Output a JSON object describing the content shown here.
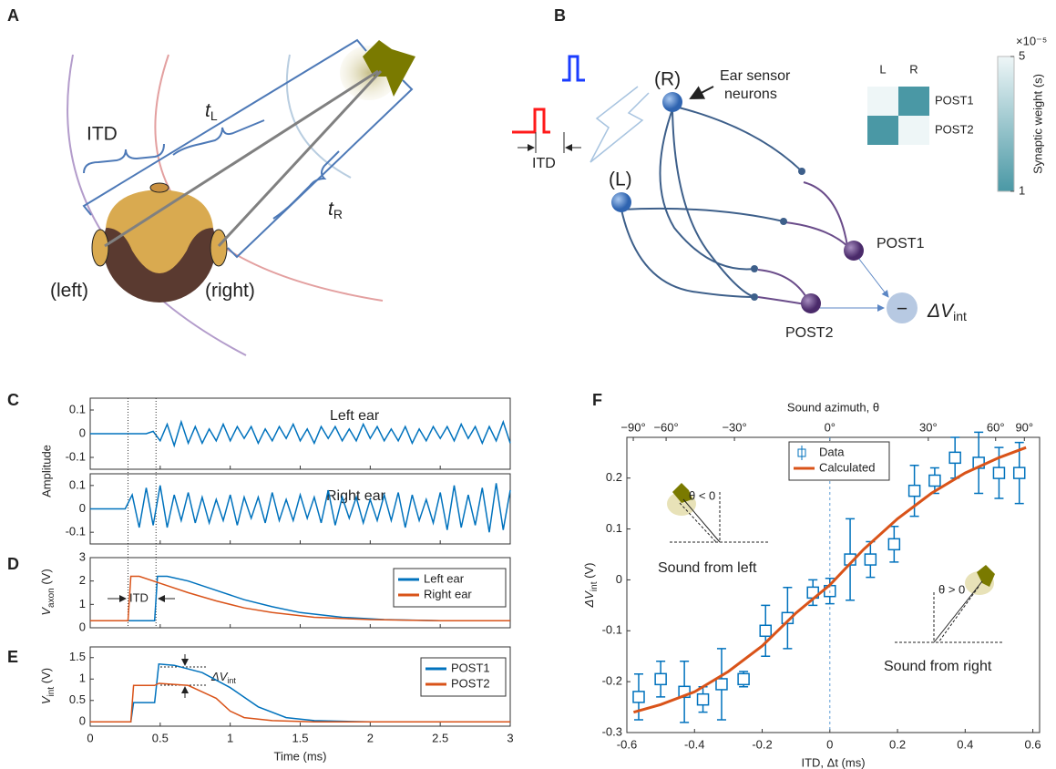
{
  "panels": {
    "A": "A",
    "B": "B",
    "C": "C",
    "D": "D",
    "E": "E",
    "F": "F"
  },
  "diagrams": {
    "A": {
      "itd": "ITD",
      "t_left": {
        "text": "t",
        "sub": "L"
      },
      "t_right": {
        "text": "t",
        "sub": "R"
      },
      "left": "(left)",
      "right": "(right)"
    },
    "B": {
      "right_neuron": "(R)",
      "left_neuron": "(L)",
      "sensor_label": [
        "Ear sensor",
        "neurons"
      ],
      "itd": "ITD",
      "post1": "POST1",
      "post2": "POST2",
      "output": {
        "text": "ΔV",
        "sub": "int"
      },
      "minus": "−"
    }
  },
  "chart_data": [
    {
      "type": "line",
      "annotation": "Left ear",
      "ylabel": "Amplitude",
      "xlim": [
        0,
        3
      ],
      "ylim": [
        -0.15,
        0.15
      ],
      "yticks": [
        -0.1,
        0,
        0.1
      ],
      "onsets": [
        0.27,
        0.47
      ],
      "x": [
        0,
        0.05,
        0.1,
        0.15,
        0.2,
        0.25,
        0.3,
        0.35,
        0.4,
        0.45,
        0.5,
        0.55,
        0.6,
        0.65,
        0.7,
        0.75,
        0.8,
        0.85,
        0.9,
        0.95,
        1,
        1.05,
        1.1,
        1.15,
        1.2,
        1.25,
        1.3,
        1.35,
        1.4,
        1.45,
        1.5,
        1.55,
        1.6,
        1.65,
        1.7,
        1.75,
        1.8,
        1.85,
        1.9,
        1.95,
        2,
        2.05,
        2.1,
        2.15,
        2.2,
        2.25,
        2.3,
        2.35,
        2.4,
        2.45,
        2.5,
        2.55,
        2.6,
        2.65,
        2.7,
        2.75,
        2.8,
        2.85,
        2.9,
        2.95,
        3
      ],
      "series": [
        {
          "color": "#0072bd",
          "values": [
            0,
            0,
            0,
            0,
            0,
            0,
            0,
            0,
            0,
            0.01,
            -0.03,
            0.04,
            -0.05,
            0.05,
            -0.04,
            0.03,
            -0.04,
            0.02,
            -0.03,
            0.04,
            -0.03,
            0.03,
            -0.02,
            0.03,
            -0.04,
            0.02,
            -0.03,
            0.03,
            -0.02,
            0.04,
            -0.03,
            0.02,
            -0.04,
            0.03,
            -0.02,
            0.03,
            -0.03,
            0.02,
            -0.03,
            0.04,
            -0.02,
            0.03,
            -0.03,
            0.02,
            -0.03,
            0.03,
            -0.04,
            0.02,
            -0.03,
            0.03,
            -0.02,
            0.03,
            -0.03,
            0.04,
            -0.02,
            0.03,
            -0.04,
            0.03,
            -0.03,
            0.05,
            -0.04
          ]
        }
      ]
    },
    {
      "type": "line",
      "annotation": "Right ear",
      "xlim": [
        0,
        3
      ],
      "ylim": [
        -0.15,
        0.15
      ],
      "yticks": [
        -0.1,
        0,
        0.1
      ],
      "x": [
        0,
        0.05,
        0.1,
        0.15,
        0.2,
        0.25,
        0.3,
        0.35,
        0.4,
        0.45,
        0.5,
        0.55,
        0.6,
        0.65,
        0.7,
        0.75,
        0.8,
        0.85,
        0.9,
        0.95,
        1,
        1.05,
        1.1,
        1.15,
        1.2,
        1.25,
        1.3,
        1.35,
        1.4,
        1.45,
        1.5,
        1.55,
        1.6,
        1.65,
        1.7,
        1.75,
        1.8,
        1.85,
        1.9,
        1.95,
        2,
        2.05,
        2.1,
        2.15,
        2.2,
        2.25,
        2.3,
        2.35,
        2.4,
        2.45,
        2.5,
        2.55,
        2.6,
        2.65,
        2.7,
        2.75,
        2.8,
        2.85,
        2.9,
        2.95,
        3
      ],
      "series": [
        {
          "color": "#0072bd",
          "values": [
            0,
            0,
            0,
            0,
            0,
            0,
            0.06,
            -0.08,
            0.09,
            -0.07,
            0.1,
            -0.08,
            0.06,
            -0.05,
            0.07,
            -0.06,
            0.05,
            -0.06,
            0.04,
            -0.05,
            0.06,
            -0.07,
            0.05,
            -0.04,
            0.05,
            -0.06,
            0.07,
            -0.05,
            0.04,
            -0.05,
            0.06,
            -0.04,
            0.05,
            -0.06,
            0.08,
            -0.07,
            0.05,
            -0.04,
            0.05,
            -0.06,
            0.04,
            -0.05,
            0.06,
            -0.05,
            0.07,
            -0.08,
            0.06,
            -0.05,
            0.04,
            -0.06,
            0.07,
            -0.09,
            0.1,
            -0.08,
            0.06,
            -0.07,
            0.09,
            -0.1,
            0.11,
            -0.09,
            0.08
          ]
        }
      ]
    },
    {
      "type": "line",
      "annotation": "ITD",
      "ylabel": {
        "text": "V",
        "sub": "axon",
        "suffix": " (V)"
      },
      "xlim": [
        0,
        3
      ],
      "ylim": [
        0,
        3
      ],
      "yticks": [
        0,
        1,
        2,
        3
      ],
      "series": [
        {
          "name": "Left ear",
          "color": "#0072bd",
          "x": [
            0,
            0.46,
            0.48,
            0.55,
            0.7,
            0.9,
            1.1,
            1.3,
            1.5,
            1.8,
            2.1,
            2.5,
            3
          ],
          "values": [
            0.3,
            0.3,
            2.2,
            2.2,
            2,
            1.6,
            1.2,
            0.9,
            0.65,
            0.45,
            0.35,
            0.3,
            0.3
          ]
        },
        {
          "name": "Right ear",
          "color": "#d95319",
          "x": [
            0,
            0.27,
            0.29,
            0.35,
            0.5,
            0.7,
            0.9,
            1.1,
            1.3,
            1.6,
            2,
            2.5,
            3
          ],
          "values": [
            0.3,
            0.3,
            2.2,
            2.2,
            1.9,
            1.5,
            1.15,
            0.85,
            0.65,
            0.45,
            0.35,
            0.3,
            0.3
          ]
        }
      ]
    },
    {
      "type": "line",
      "annotation": {
        "text": "ΔV",
        "sub": "int"
      },
      "ylabel": {
        "text": "V",
        "sub": "int",
        "suffix": " (V)"
      },
      "xlabel": "Time (ms)",
      "xlim": [
        0,
        3
      ],
      "ylim": [
        -0.1,
        1.75
      ],
      "yticks": [
        0,
        0.5,
        1,
        1.5
      ],
      "xticks": [
        0,
        0.5,
        1,
        1.5,
        2,
        2.5,
        3
      ],
      "series": [
        {
          "name": "POST1",
          "color": "#0072bd",
          "x": [
            0,
            0.29,
            0.31,
            0.46,
            0.49,
            0.6,
            0.8,
            1,
            1.2,
            1.4,
            1.6,
            2,
            3
          ],
          "values": [
            0,
            0,
            0.45,
            0.45,
            1.35,
            1.32,
            1.15,
            0.8,
            0.35,
            0.1,
            0.03,
            0,
            0
          ]
        },
        {
          "name": "POST2",
          "color": "#d95319",
          "x": [
            0,
            0.29,
            0.31,
            0.46,
            0.49,
            0.7,
            0.9,
            1,
            1.1,
            1.3,
            1.6,
            2,
            3
          ],
          "values": [
            0,
            0,
            0.85,
            0.85,
            0.9,
            0.85,
            0.55,
            0.25,
            0.1,
            0.03,
            0,
            0,
            0
          ]
        }
      ]
    },
    {
      "type": "scatter",
      "xlabel": "ITD, Δt (ms)",
      "ylabel": {
        "text": "ΔV",
        "sub": "int",
        "suffix": " (V)"
      },
      "x2label": "Sound azimuth, θ",
      "xlim": [
        -0.6,
        0.62
      ],
      "ylim": [
        -0.3,
        0.28
      ],
      "xticks": [
        -0.6,
        -0.4,
        -0.2,
        0,
        0.2,
        0.4,
        0.6
      ],
      "yticks": [
        -0.3,
        -0.2,
        -0.1,
        0,
        0.1,
        0.2
      ],
      "vline": 0,
      "x2ticks": [
        {
          "value": -0.581,
          "label": "−90°"
        },
        {
          "value": -0.484,
          "label": "−60°"
        },
        {
          "value": -0.282,
          "label": "−30°"
        },
        {
          "value": 0,
          "label": "0°"
        },
        {
          "value": 0.291,
          "label": "30°"
        },
        {
          "value": 0.49,
          "label": "60°"
        },
        {
          "value": 0.575,
          "label": "90°"
        }
      ],
      "insets": {
        "left": "Sound from left",
        "left_angle": "θ < 0",
        "right": "Sound from right",
        "right_angle": "θ > 0"
      },
      "series": [
        {
          "name": "Data",
          "color": "#0072bd",
          "x": [
            -0.565,
            -0.5,
            -0.43,
            -0.375,
            -0.32,
            -0.255,
            -0.19,
            -0.125,
            -0.05,
            0,
            0.06,
            0.12,
            0.19,
            0.25,
            0.31,
            0.37,
            0.44,
            0.5,
            0.56
          ],
          "values": [
            -0.23,
            -0.195,
            -0.22,
            -0.235,
            -0.205,
            -0.195,
            -0.1,
            -0.075,
            -0.025,
            -0.022,
            0.04,
            0.04,
            0.07,
            0.175,
            0.195,
            0.24,
            0.23,
            0.21,
            0.21
          ],
          "errors": [
            0.045,
            0.035,
            0.06,
            0.025,
            0.07,
            0.015,
            0.05,
            0.06,
            0.025,
            0.025,
            0.08,
            0.035,
            0.035,
            0.05,
            0.025,
            0.04,
            0.06,
            0.05,
            0.06
          ]
        },
        {
          "name": "Calculated",
          "color": "#d95319",
          "x": [
            -0.58,
            -0.5,
            -0.4,
            -0.3,
            -0.2,
            -0.1,
            0,
            0.1,
            0.2,
            0.3,
            0.4,
            0.5,
            0.58
          ],
          "values": [
            -0.26,
            -0.245,
            -0.22,
            -0.18,
            -0.13,
            -0.065,
            -0.01,
            0.06,
            0.12,
            0.17,
            0.21,
            0.24,
            0.26
          ]
        }
      ]
    },
    {
      "type": "heatmap",
      "xcategories": [
        "L",
        "R"
      ],
      "ycategories": [
        "POST1",
        "POST2"
      ],
      "values": [
        [
          5,
          1
        ],
        [
          1,
          5
        ]
      ],
      "clim": [
        1,
        5
      ],
      "cticks": [
        1,
        5
      ],
      "colorbar_label": "Synaptic weight (s)",
      "colorbar_exponent": "×10⁻⁵",
      "colormap": [
        "#4a98a5",
        "#eef6f7"
      ]
    }
  ]
}
